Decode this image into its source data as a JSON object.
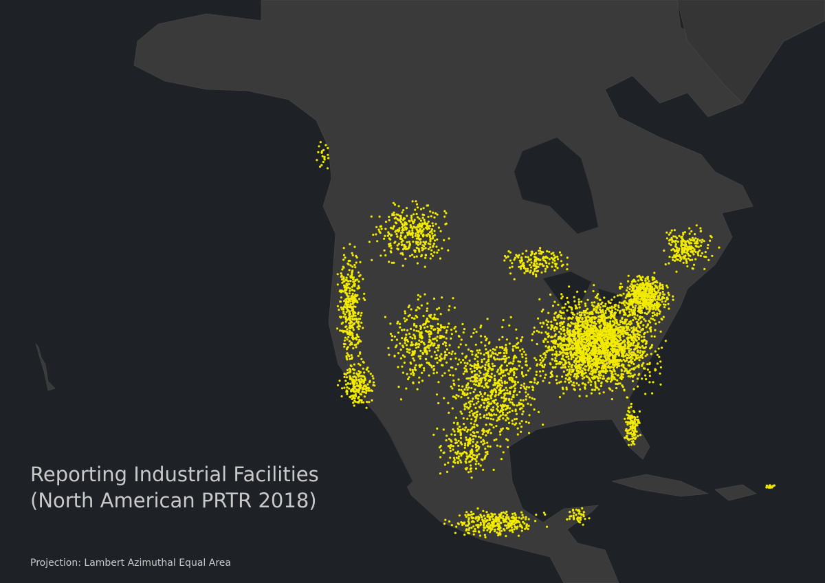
{
  "title": {
    "line1": "Reporting Industrial Facilities",
    "line2": "(North American PRTR 2018)"
  },
  "projection": "Projection: Lambert Azimuthal Equal Area"
}
